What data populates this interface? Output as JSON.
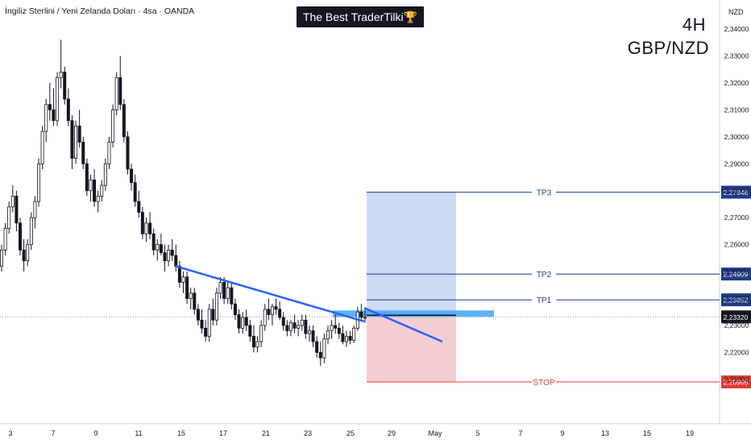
{
  "header": {
    "symbol_title": "İngiliz Sterlini / Yeni Zelanda Doları · 4sa · OANDA",
    "badge_text": "The Best TraderTilki",
    "badge_icon": "trophy-icon",
    "timeframe": "4H",
    "pair": "GBP/NZD",
    "currency": "NZD"
  },
  "chart_data": {
    "type": "candlestick",
    "y_axis": {
      "range": [
        2.2055,
        2.3485
      ],
      "ticks": [
        "2,34000",
        "2,33000",
        "2,32000",
        "2,31000",
        "2,30000",
        "2,29000",
        "2,28000",
        "2,27000",
        "2,26000",
        "2,25000",
        "2,24000",
        "2,23000",
        "2,22000",
        "2,21000"
      ]
    },
    "x_axis": {
      "ticks": [
        "3",
        "7",
        "9",
        "11",
        "15",
        "17",
        "21",
        "23",
        "25",
        "29",
        "May",
        "5",
        "7",
        "9",
        "13",
        "15",
        "19"
      ]
    },
    "candles": [
      [
        2.252,
        2.26,
        2.25,
        2.258
      ],
      [
        2.258,
        2.268,
        2.256,
        2.266
      ],
      [
        2.266,
        2.276,
        2.264,
        2.274
      ],
      [
        2.274,
        2.282,
        2.272,
        2.278
      ],
      [
        2.278,
        2.28,
        2.265,
        2.268
      ],
      [
        2.268,
        2.27,
        2.256,
        2.258
      ],
      [
        2.258,
        2.262,
        2.25,
        2.254
      ],
      [
        2.254,
        2.262,
        2.252,
        2.26
      ],
      [
        2.26,
        2.272,
        2.258,
        2.27
      ],
      [
        2.27,
        2.278,
        2.266,
        2.276
      ],
      [
        2.276,
        2.292,
        2.274,
        2.29
      ],
      [
        2.29,
        2.304,
        2.288,
        2.302
      ],
      [
        2.302,
        2.314,
        2.298,
        2.312
      ],
      [
        2.312,
        2.32,
        2.306,
        2.31
      ],
      [
        2.31,
        2.318,
        2.304,
        2.306
      ],
      [
        2.306,
        2.324,
        2.304,
        2.322
      ],
      [
        2.322,
        2.336,
        2.318,
        2.324
      ],
      [
        2.324,
        2.326,
        2.312,
        2.314
      ],
      [
        2.314,
        2.318,
        2.304,
        2.306
      ],
      [
        2.306,
        2.308,
        2.288,
        2.292
      ],
      [
        2.292,
        2.306,
        2.29,
        2.304
      ],
      [
        2.304,
        2.31,
        2.296,
        2.298
      ],
      [
        2.298,
        2.3,
        2.288,
        2.29
      ],
      [
        2.29,
        2.292,
        2.278,
        2.28
      ],
      [
        2.28,
        2.286,
        2.276,
        2.284
      ],
      [
        2.284,
        2.288,
        2.274,
        2.276
      ],
      [
        2.276,
        2.28,
        2.272,
        2.278
      ],
      [
        2.278,
        2.284,
        2.276,
        2.282
      ],
      [
        2.282,
        2.292,
        2.28,
        2.29
      ],
      [
        2.29,
        2.3,
        2.288,
        2.298
      ],
      [
        2.298,
        2.312,
        2.296,
        2.31
      ],
      [
        2.31,
        2.324,
        2.308,
        2.322
      ],
      [
        2.322,
        2.33,
        2.31,
        2.312
      ],
      [
        2.312,
        2.314,
        2.298,
        2.3
      ],
      [
        2.3,
        2.302,
        2.286,
        2.288
      ],
      [
        2.288,
        2.29,
        2.28,
        2.283
      ],
      [
        2.283,
        2.286,
        2.274,
        2.276
      ],
      [
        2.276,
        2.28,
        2.27,
        2.272
      ],
      [
        2.272,
        2.274,
        2.262,
        2.264
      ],
      [
        2.264,
        2.27,
        2.261,
        2.268
      ],
      [
        2.268,
        2.272,
        2.262,
        2.264
      ],
      [
        2.264,
        2.266,
        2.256,
        2.258
      ],
      [
        2.258,
        2.262,
        2.254,
        2.26
      ],
      [
        2.26,
        2.264,
        2.256,
        2.257
      ],
      [
        2.257,
        2.26,
        2.25,
        2.254
      ],
      [
        2.254,
        2.26,
        2.252,
        2.258
      ],
      [
        2.258,
        2.262,
        2.254,
        2.256
      ],
      [
        2.256,
        2.26,
        2.25,
        2.252
      ],
      [
        2.252,
        2.254,
        2.244,
        2.246
      ],
      [
        2.246,
        2.25,
        2.242,
        2.248
      ],
      [
        2.248,
        2.25,
        2.238,
        2.24
      ],
      [
        2.24,
        2.244,
        2.236,
        2.242
      ],
      [
        2.242,
        2.244,
        2.234,
        2.236
      ],
      [
        2.236,
        2.238,
        2.23,
        2.232
      ],
      [
        2.232,
        2.236,
        2.227,
        2.229
      ],
      [
        2.229,
        2.232,
        2.224,
        2.226
      ],
      [
        2.226,
        2.238,
        2.224,
        2.236
      ],
      [
        2.236,
        2.24,
        2.23,
        2.232
      ],
      [
        2.232,
        2.244,
        2.23,
        2.242
      ],
      [
        2.242,
        2.248,
        2.24,
        2.246
      ],
      [
        2.246,
        2.248,
        2.238,
        2.24
      ],
      [
        2.24,
        2.246,
        2.238,
        2.244
      ],
      [
        2.244,
        2.246,
        2.236,
        2.238
      ],
      [
        2.238,
        2.24,
        2.232,
        2.234
      ],
      [
        2.234,
        2.236,
        2.227,
        2.229
      ],
      [
        2.229,
        2.235,
        2.227,
        2.233
      ],
      [
        2.233,
        2.236,
        2.228,
        2.23
      ],
      [
        2.23,
        2.232,
        2.224,
        2.226
      ],
      [
        2.226,
        2.23,
        2.22,
        2.222
      ],
      [
        2.222,
        2.226,
        2.22,
        2.224
      ],
      [
        2.224,
        2.232,
        2.222,
        2.23
      ],
      [
        2.23,
        2.238,
        2.228,
        2.236
      ],
      [
        2.236,
        2.24,
        2.232,
        2.234
      ],
      [
        2.234,
        2.238,
        2.23,
        2.237
      ],
      [
        2.237,
        2.24,
        2.234,
        2.236
      ],
      [
        2.236,
        2.239,
        2.232,
        2.233
      ],
      [
        2.233,
        2.235,
        2.228,
        2.23
      ],
      [
        2.23,
        2.232,
        2.226,
        2.228
      ],
      [
        2.228,
        2.232,
        2.226,
        2.231
      ],
      [
        2.231,
        2.234,
        2.227,
        2.229
      ],
      [
        2.229,
        2.232,
        2.226,
        2.23
      ],
      [
        2.23,
        2.234,
        2.228,
        2.232
      ],
      [
        2.232,
        2.234,
        2.225,
        2.227
      ],
      [
        2.227,
        2.23,
        2.224,
        2.228
      ],
      [
        2.228,
        2.23,
        2.222,
        2.224
      ],
      [
        2.224,
        2.226,
        2.218,
        2.22
      ],
      [
        2.22,
        2.224,
        2.215,
        2.218
      ],
      [
        2.218,
        2.227,
        2.216,
        2.225
      ],
      [
        2.225,
        2.23,
        2.223,
        2.228
      ],
      [
        2.228,
        2.232,
        2.225,
        2.23
      ],
      [
        2.23,
        2.234,
        2.227,
        2.229
      ],
      [
        2.229,
        2.231,
        2.225,
        2.227
      ],
      [
        2.227,
        2.23,
        2.223,
        2.224
      ],
      [
        2.224,
        2.228,
        2.222,
        2.226
      ],
      [
        2.226,
        2.228,
        2.223,
        2.2245
      ],
      [
        2.2245,
        2.23,
        2.2235,
        2.229
      ],
      [
        2.229,
        2.237,
        2.228,
        2.235
      ],
      [
        2.235,
        2.238,
        2.232,
        2.233
      ],
      [
        2.233,
        2.236,
        2.231,
        2.233
      ]
    ],
    "trendline_upper": [
      [
        0,
        2.252
      ],
      [
        1,
        2.2315
      ]
    ],
    "trendline_lower": [
      [
        0,
        2.2365
      ],
      [
        1,
        2.224
      ]
    ],
    "current_price": "2,23320",
    "levels": [
      {
        "name": "TP3",
        "value": "2,27946",
        "price": 2.27946,
        "color": "#1e3a8a"
      },
      {
        "name": "TP2",
        "value": "2,24909",
        "price": 2.24909,
        "color": "#1e3a8a"
      },
      {
        "name": "TP1",
        "value": "2,23952",
        "price": 2.23952,
        "color": "#1e3a8a"
      },
      {
        "name": "STOP",
        "value": "2,20905",
        "price": 2.20905,
        "color": "#e53935"
      }
    ],
    "entry_price": 2.2332,
    "colors": {
      "candle": "#131722",
      "trendline": "#2962ff",
      "target_zone": "#bcd0f2",
      "stop_zone": "#f3c6cb",
      "entry_zone": "#42a5f5",
      "grid": "#ffffff"
    }
  }
}
